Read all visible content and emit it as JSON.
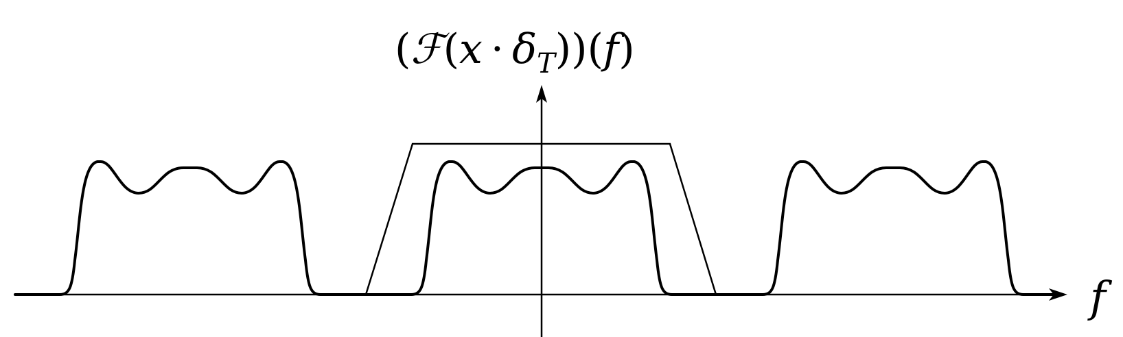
{
  "diagram": {
    "title": "(ℱ(x · δT))(f)",
    "title_parts": {
      "open_paren": "(",
      "fourier": "ℱ",
      "inner_open": "(",
      "x": "x",
      "dot": "·",
      "delta": "δ",
      "subscript": "T",
      "close_parens": "))(",
      "f": "f",
      "close_paren": ")"
    },
    "x_axis_label": "f",
    "spectral_copies": 3,
    "has_lowpass_filter": true,
    "has_vertical_axis": true,
    "has_horizontal_axis": true,
    "colors": {
      "stroke": "#000000",
      "background": "#ffffff"
    }
  }
}
